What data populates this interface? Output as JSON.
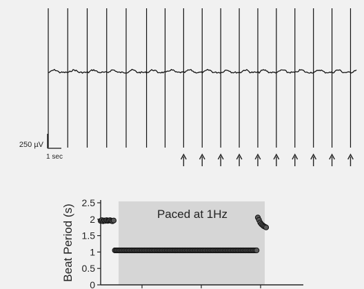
{
  "chart_data": [
    {
      "type": "line",
      "scale_bar": {
        "voltage_label": "250 µV",
        "time_label": "1 sec"
      },
      "spike_times_s": [
        0.0,
        1.05,
        2.1,
        3.15,
        4.2,
        5.3,
        6.3,
        7.3,
        8.3,
        9.3,
        10.3,
        11.3,
        12.3,
        13.3,
        14.3,
        15.3,
        16.3
      ],
      "pacing_stimulus_times_s": [
        7.3,
        8.3,
        9.3,
        10.3,
        11.3,
        12.3,
        13.3,
        14.3,
        15.3,
        16.3
      ]
    },
    {
      "type": "scatter",
      "ylabel": "Beat Period (s)",
      "ylim": [
        0,
        2.5
      ],
      "yticks": [
        "0",
        "0.5",
        "1",
        "1.5",
        "2",
        "2.5"
      ],
      "shaded_region_label": "Paced at 1Hz",
      "series": [
        {
          "x": [
            0,
            1,
            2,
            3,
            4,
            5,
            6,
            7,
            8,
            9,
            10,
            11
          ],
          "values": [
            1.95,
            1.97,
            1.94,
            1.96,
            1.95,
            1.97,
            1.95,
            1.96,
            1.97,
            1.95,
            1.94,
            1.96
          ]
        },
        {
          "x_range": [
            12,
            132
          ],
          "constant_value": 1.05
        },
        {
          "x": [
            133,
            134,
            135,
            136,
            137,
            138,
            139,
            140
          ],
          "values": [
            2.05,
            1.98,
            1.9,
            1.85,
            1.82,
            1.79,
            1.77,
            1.75
          ]
        }
      ]
    }
  ]
}
